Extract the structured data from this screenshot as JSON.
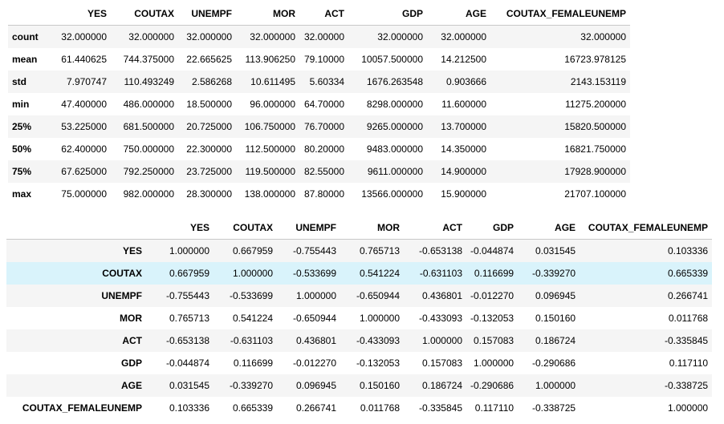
{
  "describe": {
    "columns": [
      "",
      "YES",
      "COUTAX",
      "UNEMPF",
      "MOR",
      "ACT",
      "GDP",
      "AGE",
      "COUTAX_FEMALEUNEMP"
    ],
    "rows": [
      {
        "label": "count",
        "values": [
          "32.000000",
          "32.000000",
          "32.000000",
          "32.000000",
          "32.00000",
          "32.000000",
          "32.000000",
          "32.000000"
        ]
      },
      {
        "label": "mean",
        "values": [
          "61.440625",
          "744.375000",
          "22.665625",
          "113.906250",
          "79.10000",
          "10057.500000",
          "14.212500",
          "16723.978125"
        ]
      },
      {
        "label": "std",
        "values": [
          "7.970747",
          "110.493249",
          "2.586268",
          "10.611495",
          "5.60334",
          "1676.263548",
          "0.903666",
          "2143.153119"
        ]
      },
      {
        "label": "min",
        "values": [
          "47.400000",
          "486.000000",
          "18.500000",
          "96.000000",
          "64.70000",
          "8298.000000",
          "11.600000",
          "11275.200000"
        ]
      },
      {
        "label": "25%",
        "values": [
          "53.225000",
          "681.500000",
          "20.725000",
          "106.750000",
          "76.70000",
          "9265.000000",
          "13.700000",
          "15820.500000"
        ]
      },
      {
        "label": "50%",
        "values": [
          "62.400000",
          "750.000000",
          "22.300000",
          "112.500000",
          "80.20000",
          "9483.000000",
          "14.350000",
          "16821.750000"
        ]
      },
      {
        "label": "75%",
        "values": [
          "67.625000",
          "792.250000",
          "23.725000",
          "119.500000",
          "82.55000",
          "9611.000000",
          "14.900000",
          "17928.900000"
        ]
      },
      {
        "label": "max",
        "values": [
          "75.000000",
          "982.000000",
          "28.300000",
          "138.000000",
          "87.80000",
          "13566.000000",
          "15.900000",
          "21707.100000"
        ]
      }
    ]
  },
  "corr": {
    "columns": [
      "",
      "YES",
      "COUTAX",
      "UNEMPF",
      "MOR",
      "ACT",
      "GDP",
      "AGE",
      "COUTAX_FEMALEUNEMP"
    ],
    "highlighted_row": "COUTAX",
    "rows": [
      {
        "label": "YES",
        "values": [
          "1.000000",
          "0.667959",
          "-0.755443",
          "0.765713",
          "-0.653138",
          "-0.044874",
          "0.031545",
          "0.103336"
        ]
      },
      {
        "label": "COUTAX",
        "values": [
          "0.667959",
          "1.000000",
          "-0.533699",
          "0.541224",
          "-0.631103",
          "0.116699",
          "-0.339270",
          "0.665339"
        ]
      },
      {
        "label": "UNEMPF",
        "values": [
          "-0.755443",
          "-0.533699",
          "1.000000",
          "-0.650944",
          "0.436801",
          "-0.012270",
          "0.096945",
          "0.266741"
        ]
      },
      {
        "label": "MOR",
        "values": [
          "0.765713",
          "0.541224",
          "-0.650944",
          "1.000000",
          "-0.433093",
          "-0.132053",
          "0.150160",
          "0.011768"
        ]
      },
      {
        "label": "ACT",
        "values": [
          "-0.653138",
          "-0.631103",
          "0.436801",
          "-0.433093",
          "1.000000",
          "0.157083",
          "0.186724",
          "-0.335845"
        ]
      },
      {
        "label": "GDP",
        "values": [
          "-0.044874",
          "0.116699",
          "-0.012270",
          "-0.132053",
          "0.157083",
          "1.000000",
          "-0.290686",
          "0.117110"
        ]
      },
      {
        "label": "AGE",
        "values": [
          "0.031545",
          "-0.339270",
          "0.096945",
          "0.150160",
          "0.186724",
          "-0.290686",
          "1.000000",
          "-0.338725"
        ]
      },
      {
        "label": "COUTAX_FEMALEUNEMP",
        "values": [
          "0.103336",
          "0.665339",
          "0.266741",
          "0.011768",
          "-0.335845",
          "0.117110",
          "-0.338725",
          "1.000000"
        ]
      }
    ]
  }
}
